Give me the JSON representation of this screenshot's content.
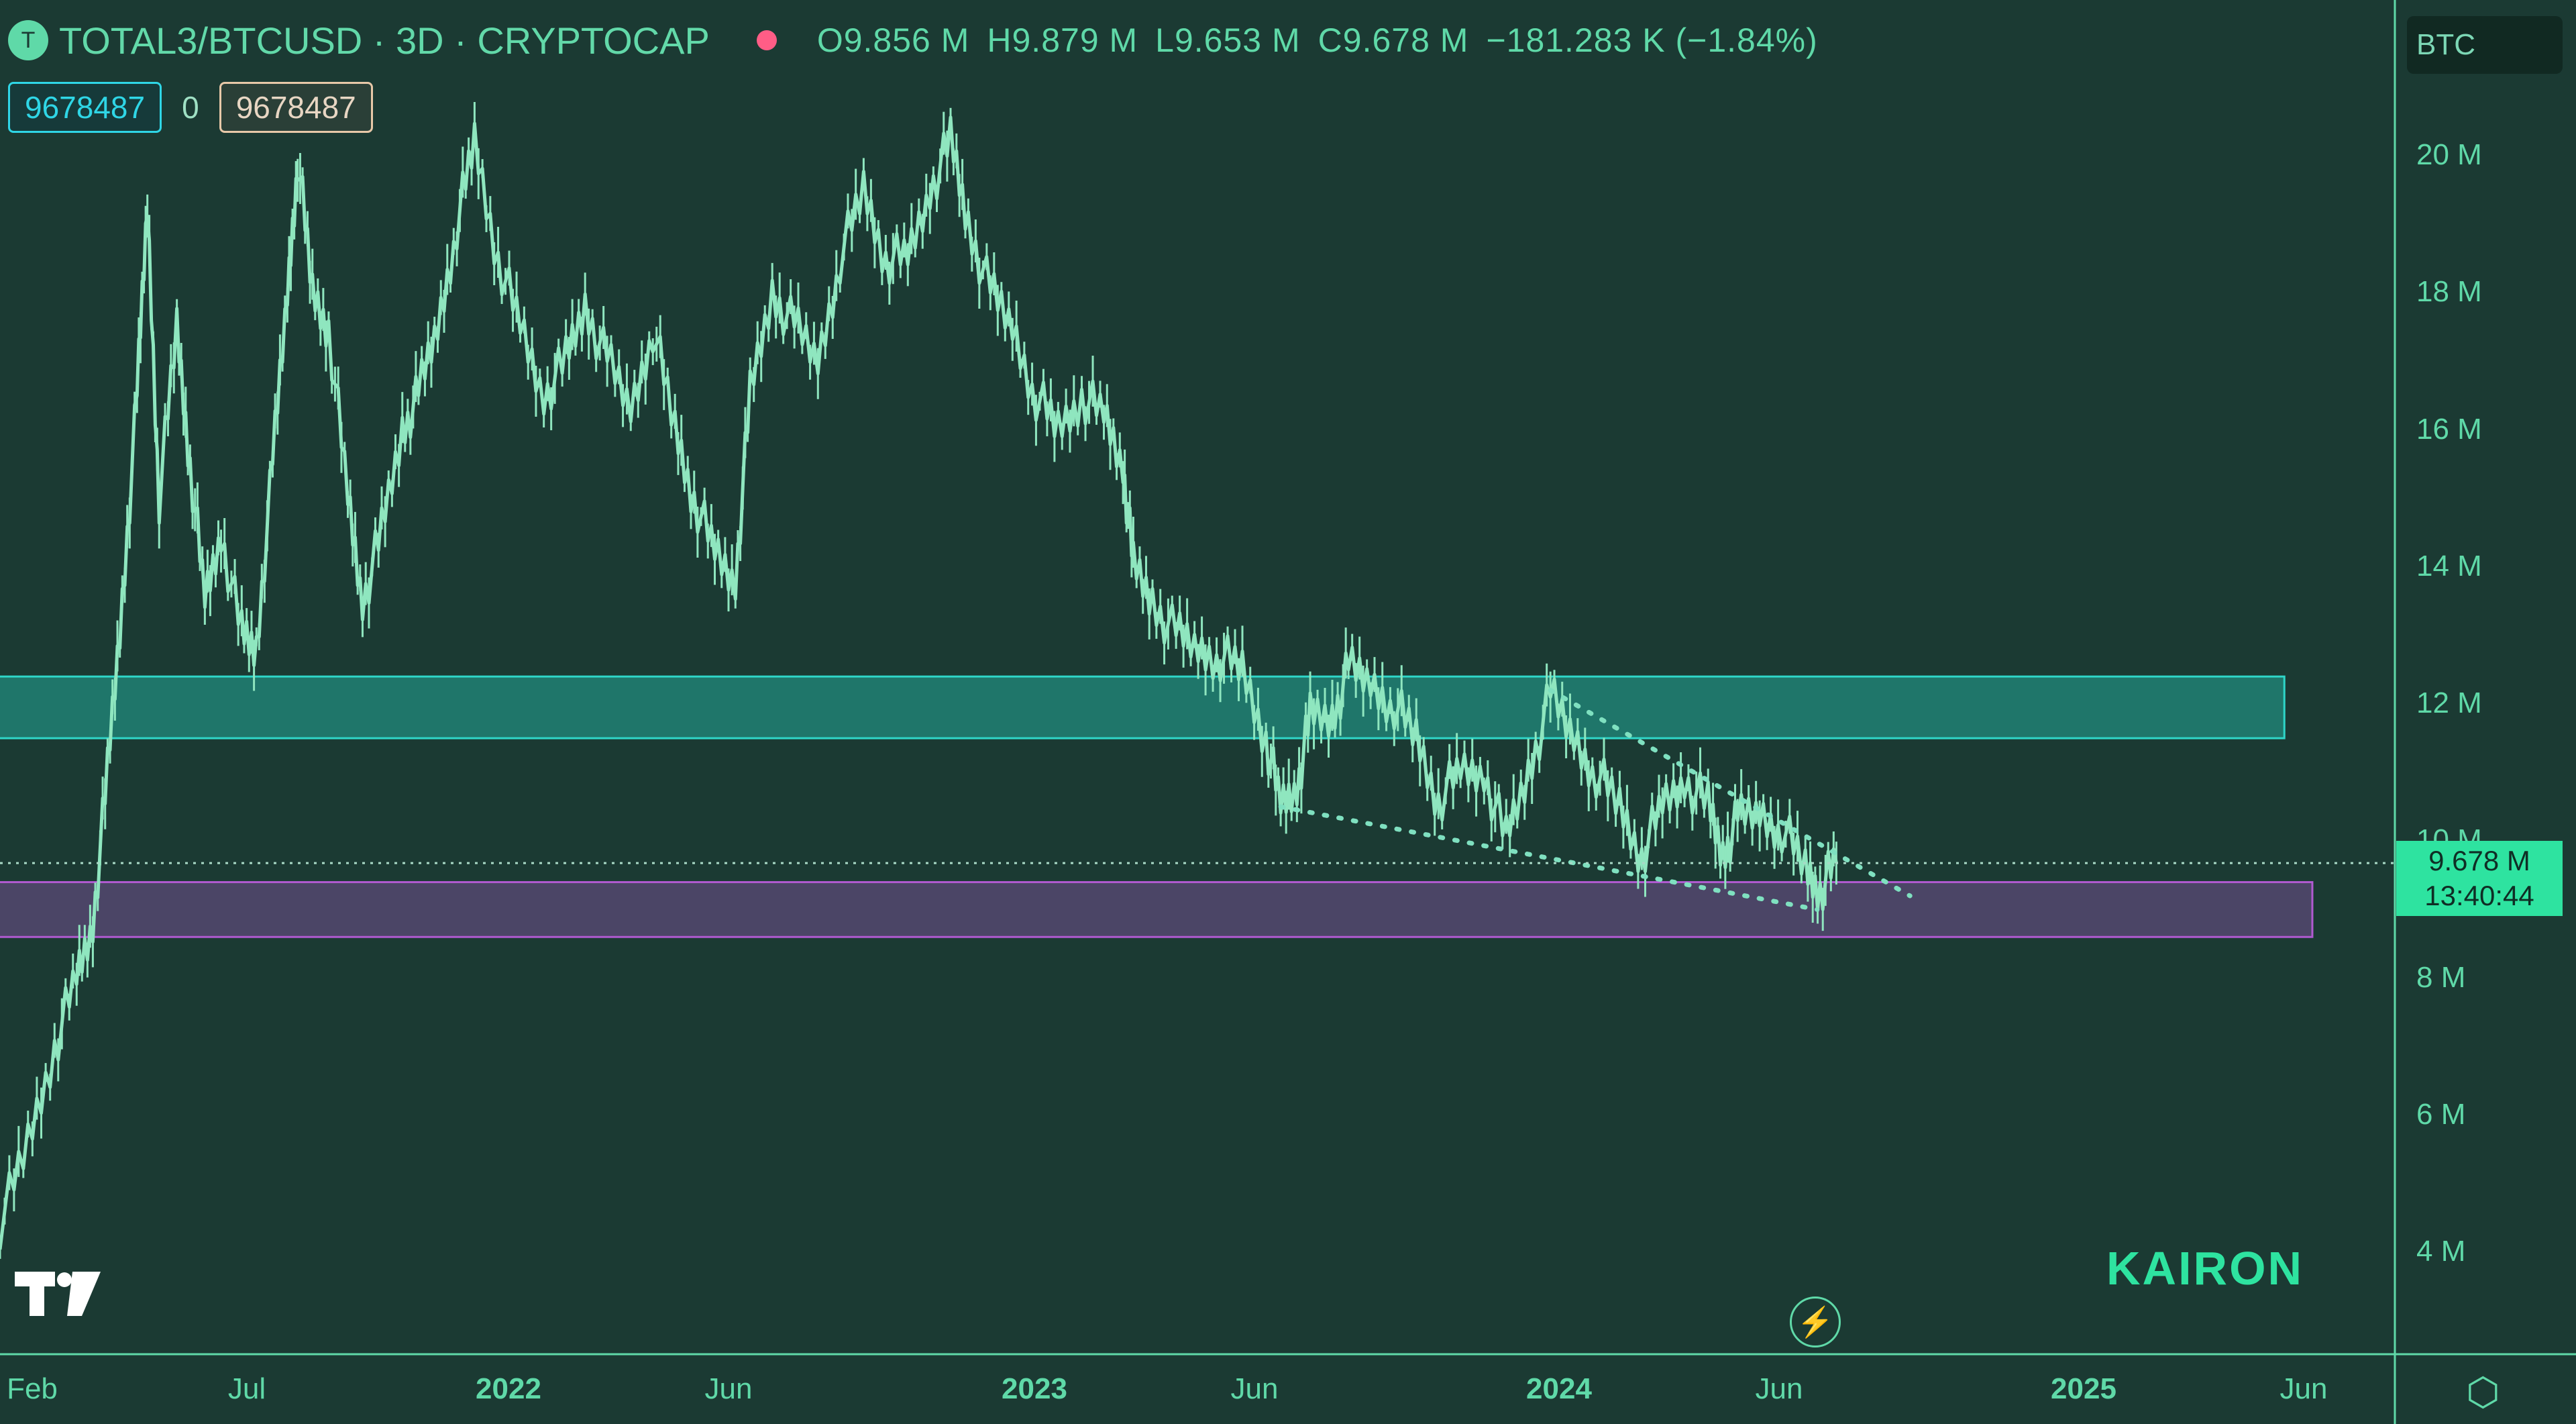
{
  "header": {
    "symbol_icon": "T",
    "symbol": "TOTAL3/BTCUSD · 3D · CRYPTOCAP",
    "open": "O9.856 M",
    "high": "H9.879 M",
    "low": "L9.653 M",
    "close": "C9.678 M",
    "change": "−181.283 K (−1.84%)",
    "live_color": "#ff5d86"
  },
  "inputs": {
    "a": "9678487",
    "zero": "0",
    "b": "9678487"
  },
  "currency_badge": "BTC",
  "price_tag": {
    "price": "9.678 M",
    "countdown": "13:40:44"
  },
  "watermark": "KAIRON",
  "y_axis": {
    "ticks": [
      "20 M",
      "18 M",
      "16 M",
      "14 M",
      "12 M",
      "10 M",
      "8 M",
      "6 M",
      "4 M"
    ]
  },
  "x_axis": {
    "ticks": [
      "Feb",
      "Jul",
      "2022",
      "Jun",
      "2023",
      "Jun",
      "2024",
      "Jun",
      "2025",
      "Jun"
    ]
  },
  "chart_data": {
    "type": "line",
    "ylim": [
      3,
      22
    ],
    "x_start": "2021-02-01",
    "x_end": "2025-07-15",
    "series": [
      {
        "values": [
          [
            "2021-02-01",
            4.4
          ],
          [
            "2021-02-20",
            5.6
          ],
          [
            "2021-03-10",
            7.0
          ],
          [
            "2021-03-25",
            8.0
          ],
          [
            "2021-04-05",
            8.8
          ],
          [
            "2021-04-15",
            11.0
          ],
          [
            "2021-04-25",
            13.5
          ],
          [
            "2021-05-05",
            16.5
          ],
          [
            "2021-05-12",
            19.3
          ],
          [
            "2021-05-20",
            15.0
          ],
          [
            "2021-06-01",
            17.5
          ],
          [
            "2021-06-10",
            15.5
          ],
          [
            "2021-06-20",
            13.5
          ],
          [
            "2021-07-01",
            14.5
          ],
          [
            "2021-07-15",
            13.0
          ],
          [
            "2021-07-25",
            12.8
          ],
          [
            "2021-08-05",
            15.5
          ],
          [
            "2021-08-15",
            18.0
          ],
          [
            "2021-08-22",
            20.0
          ],
          [
            "2021-09-01",
            18.0
          ],
          [
            "2021-09-12",
            17.5
          ],
          [
            "2021-09-25",
            15.0
          ],
          [
            "2021-10-05",
            13.5
          ],
          [
            "2021-10-18",
            14.5
          ],
          [
            "2021-11-01",
            16.0
          ],
          [
            "2021-11-12",
            16.5
          ],
          [
            "2021-11-25",
            17.5
          ],
          [
            "2021-12-08",
            19.0
          ],
          [
            "2021-12-20",
            20.2
          ],
          [
            "2022-01-05",
            18.5
          ],
          [
            "2022-01-20",
            17.5
          ],
          [
            "2022-02-05",
            16.5
          ],
          [
            "2022-02-20",
            17.0
          ],
          [
            "2022-03-05",
            17.8
          ],
          [
            "2022-03-20",
            17.0
          ],
          [
            "2022-04-05",
            16.3
          ],
          [
            "2022-04-20",
            17.5
          ],
          [
            "2022-05-05",
            16.0
          ],
          [
            "2022-05-18",
            15.0
          ],
          [
            "2022-06-01",
            14.2
          ],
          [
            "2022-06-15",
            13.8
          ],
          [
            "2022-06-25",
            16.5
          ],
          [
            "2022-07-10",
            18.0
          ],
          [
            "2022-07-25",
            17.5
          ],
          [
            "2022-08-10",
            17.0
          ],
          [
            "2022-08-25",
            18.5
          ],
          [
            "2022-09-10",
            19.5
          ],
          [
            "2022-09-25",
            18.5
          ],
          [
            "2022-10-10",
            18.5
          ],
          [
            "2022-10-25",
            19.5
          ],
          [
            "2022-11-08",
            20.2
          ],
          [
            "2022-11-20",
            19.0
          ],
          [
            "2022-12-05",
            18.0
          ],
          [
            "2022-12-20",
            17.5
          ],
          [
            "2023-01-05",
            16.5
          ],
          [
            "2023-01-20",
            16.0
          ],
          [
            "2023-02-05",
            16.5
          ],
          [
            "2023-02-20",
            16.2
          ],
          [
            "2023-03-05",
            15.5
          ],
          [
            "2023-03-12",
            14.0
          ],
          [
            "2023-03-25",
            13.5
          ],
          [
            "2023-04-10",
            13.0
          ],
          [
            "2023-04-25",
            12.8
          ],
          [
            "2023-05-10",
            12.7
          ],
          [
            "2023-05-25",
            12.5
          ],
          [
            "2023-06-10",
            11.5
          ],
          [
            "2023-06-20",
            10.5
          ],
          [
            "2023-07-01",
            10.8
          ],
          [
            "2023-07-10",
            11.8
          ],
          [
            "2023-07-25",
            11.8
          ],
          [
            "2023-08-05",
            12.5
          ],
          [
            "2023-08-20",
            12.3
          ],
          [
            "2023-09-05",
            12.0
          ],
          [
            "2023-09-20",
            11.5
          ],
          [
            "2023-10-05",
            10.6
          ],
          [
            "2023-10-20",
            11.0
          ],
          [
            "2023-11-05",
            11.0
          ],
          [
            "2023-11-20",
            10.0
          ],
          [
            "2023-12-05",
            11.0
          ],
          [
            "2023-12-20",
            12.1
          ],
          [
            "2024-01-05",
            11.5
          ],
          [
            "2024-01-20",
            11.0
          ],
          [
            "2024-02-05",
            10.5
          ],
          [
            "2024-02-20",
            9.8
          ],
          [
            "2024-03-05",
            10.5
          ],
          [
            "2024-03-20",
            10.9
          ],
          [
            "2024-04-05",
            10.5
          ],
          [
            "2024-04-15",
            9.8
          ],
          [
            "2024-04-25",
            10.3
          ],
          [
            "2024-05-10",
            10.4
          ],
          [
            "2024-05-25",
            10.2
          ],
          [
            "2024-06-10",
            9.6
          ],
          [
            "2024-06-20",
            9.3
          ],
          [
            "2024-07-01",
            9.678
          ]
        ]
      }
    ],
    "zones": [
      {
        "kind": "resistance",
        "from": 11.5,
        "to": 12.4,
        "end": "2025-05-01",
        "color": "#1f766a"
      },
      {
        "kind": "support",
        "from": 8.6,
        "to": 9.4,
        "end": "2025-05-20",
        "color": "#4b4566"
      }
    ],
    "trendlines": [
      {
        "from": [
          "2023-06-20",
          10.5
        ],
        "to": [
          "2024-06-18",
          9.0
        ]
      },
      {
        "from": [
          "2023-12-20",
          12.2
        ],
        "to": [
          "2024-08-20",
          9.2
        ]
      }
    ],
    "last_price": 9.678,
    "grid": false
  }
}
